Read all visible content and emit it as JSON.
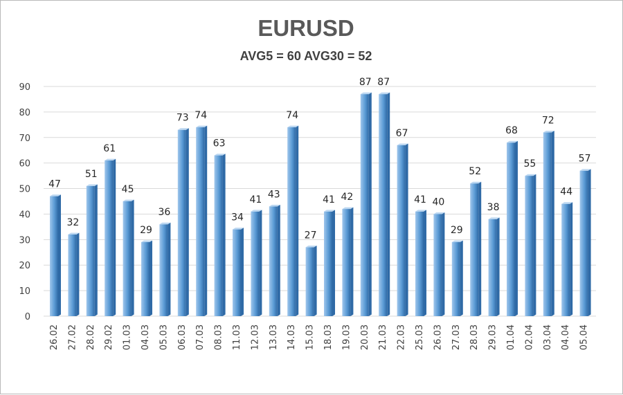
{
  "chart_data": {
    "type": "bar",
    "title": "EURUSD",
    "subtitle": "AVG5 = 60 AVG30 = 52",
    "xlabel": "",
    "ylabel": "",
    "ylim": [
      0,
      90
    ],
    "yticks": [
      0,
      10,
      20,
      30,
      40,
      50,
      60,
      70,
      80,
      90
    ],
    "grid": true,
    "legend": "none",
    "categories": [
      "26.02",
      "27.02",
      "28.02",
      "29.02",
      "01.03",
      "04.03",
      "05.03",
      "06.03",
      "07.03",
      "08.03",
      "11.03",
      "12.03",
      "13.03",
      "14.03",
      "15.03",
      "18.03",
      "19.03",
      "20.03",
      "21.03",
      "22.03",
      "25.03",
      "26.03",
      "27.03",
      "28.03",
      "29.03",
      "01.04",
      "02.04",
      "03.04",
      "04.04",
      "05.04"
    ],
    "values": [
      47,
      32,
      51,
      61,
      45,
      29,
      36,
      73,
      74,
      63,
      34,
      41,
      43,
      74,
      27,
      41,
      42,
      87,
      87,
      67,
      41,
      40,
      29,
      52,
      38,
      68,
      55,
      72,
      44,
      57
    ],
    "colors": {
      "bar_light": "#9fc6ec",
      "bar_mid": "#5b9bd5",
      "bar_dark": "#2f6aa6",
      "bar_top": "#bcd7f1"
    }
  }
}
